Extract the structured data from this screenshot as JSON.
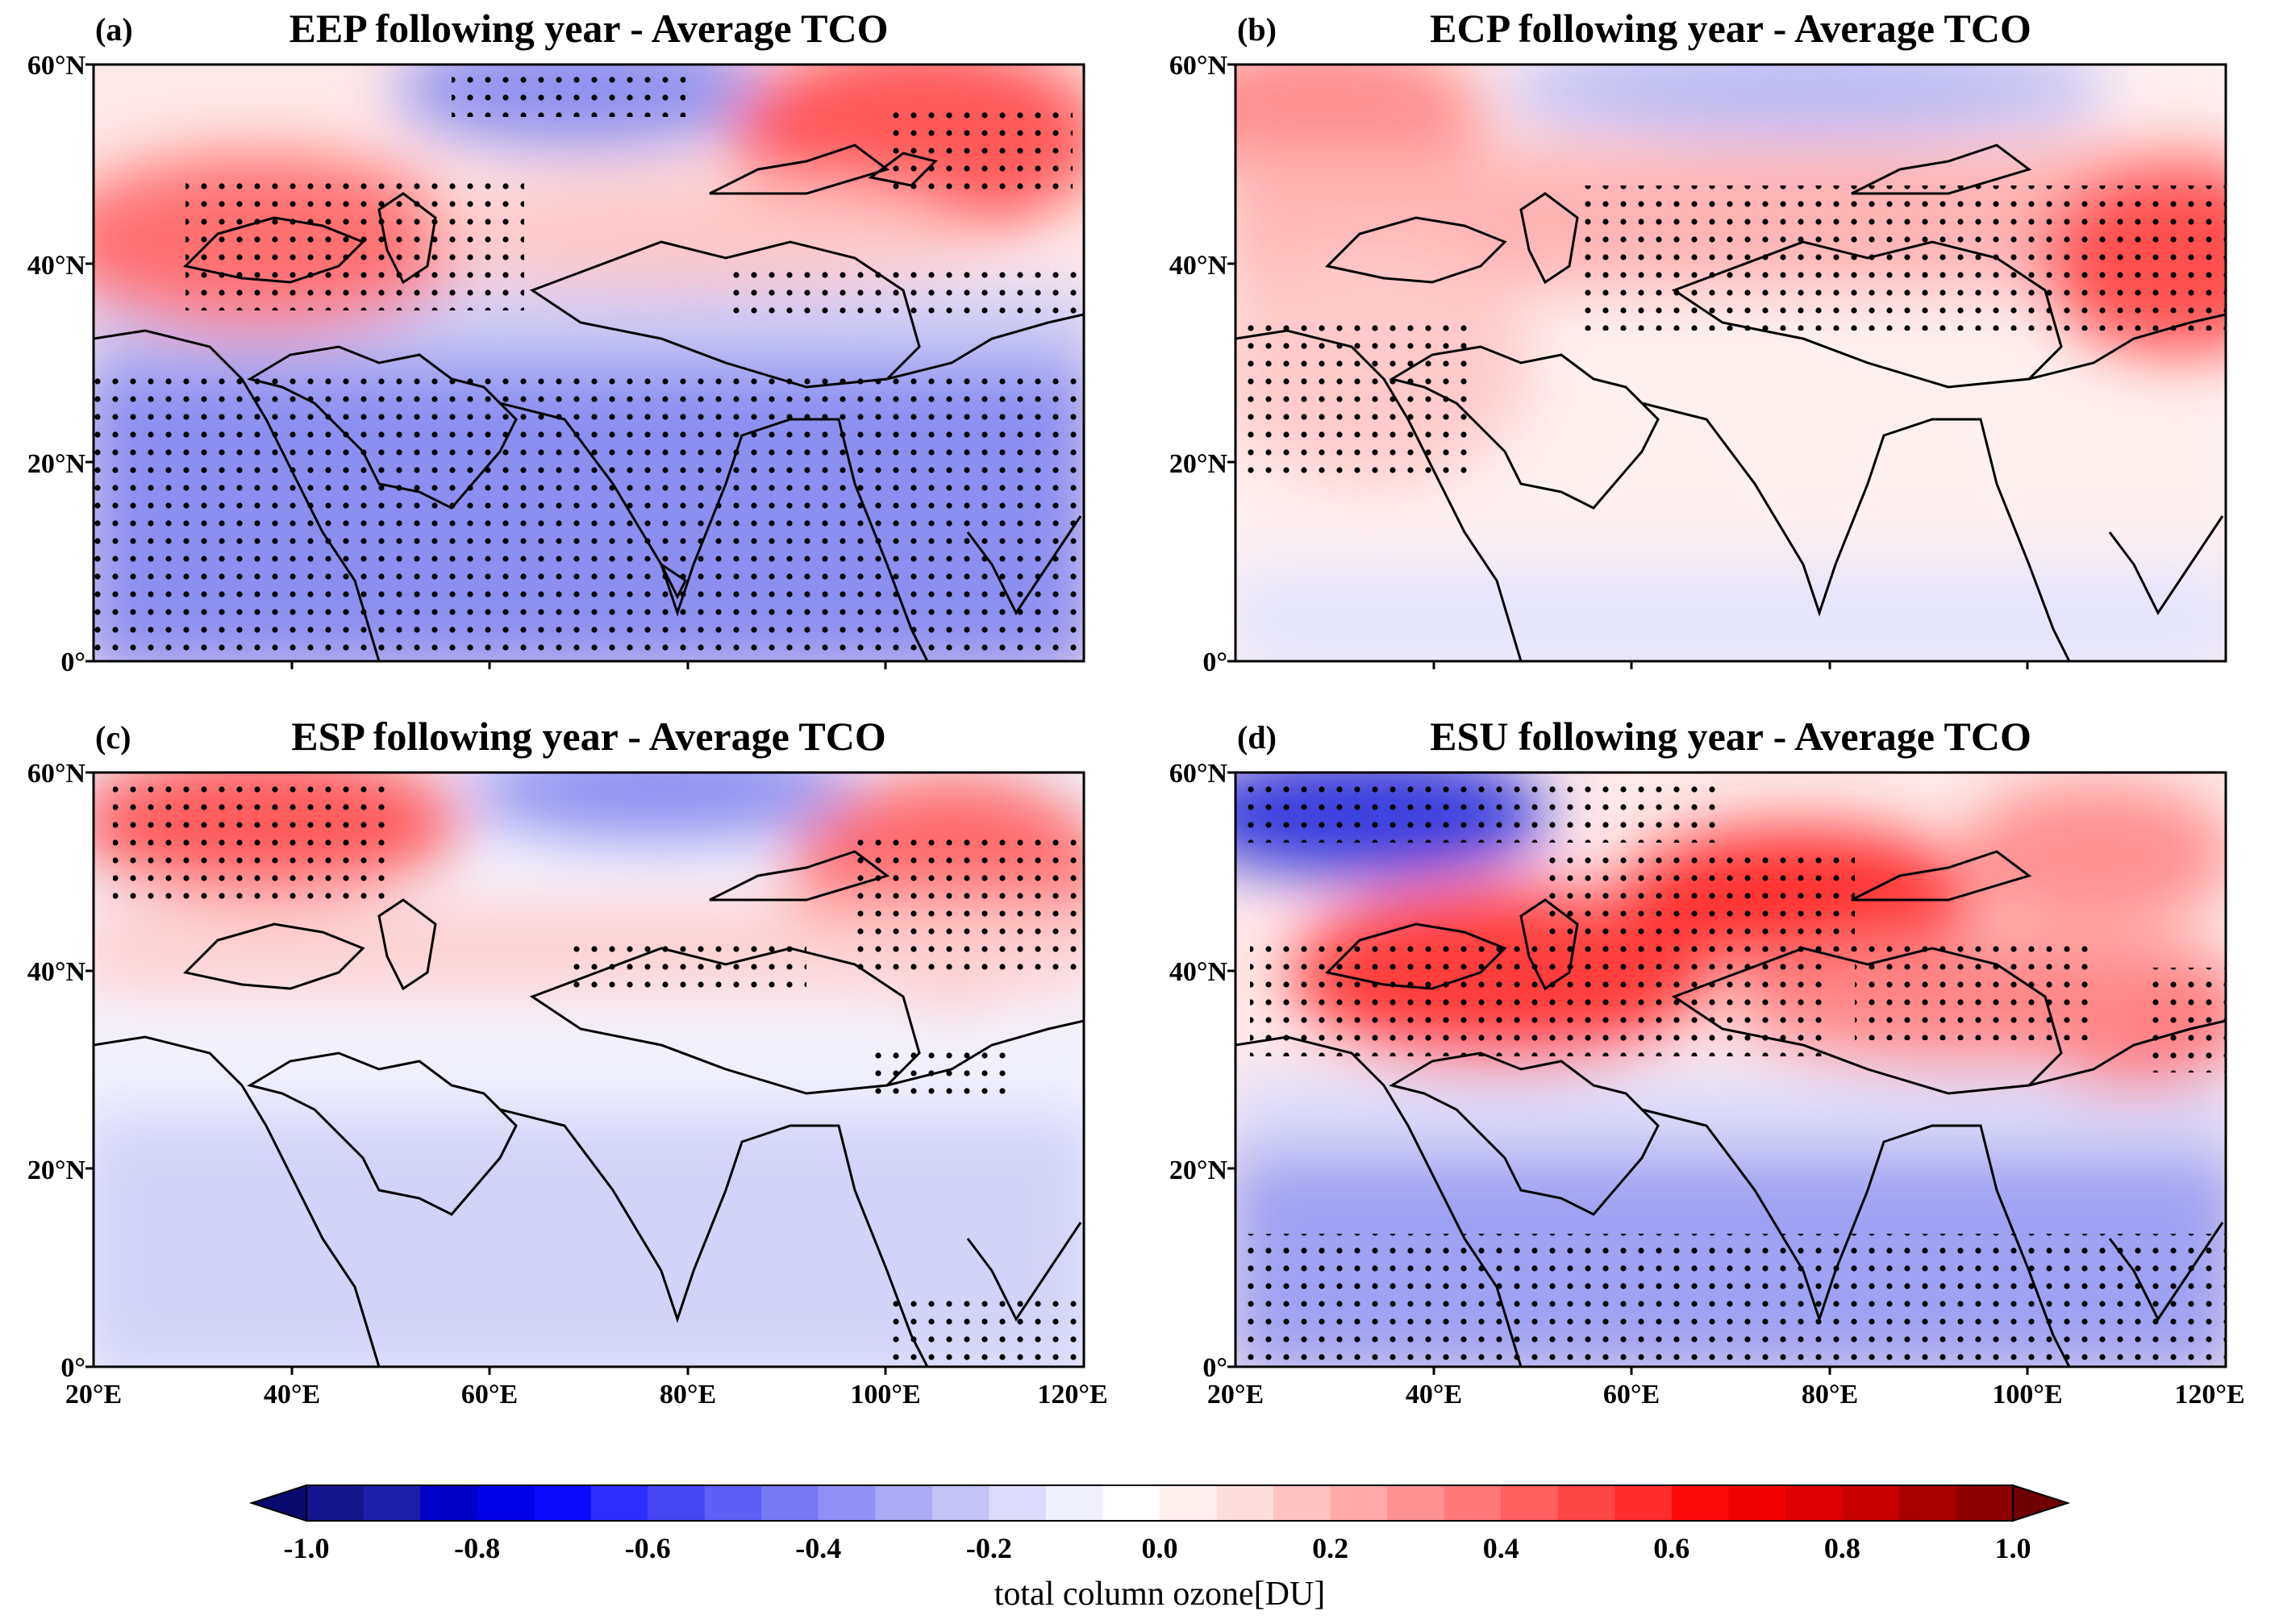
{
  "panels": [
    {
      "label": "(a)",
      "title": "EEP following year - Average TCO",
      "show_x_labels": false
    },
    {
      "label": "(b)",
      "title": "ECP following year - Average TCO",
      "show_x_labels": false
    },
    {
      "label": "(c)",
      "title": "ESP following year - Average TCO",
      "show_x_labels": true
    },
    {
      "label": "(d)",
      "title": "ESU following year - Average TCO",
      "show_x_labels": true
    }
  ],
  "axes": {
    "lat_ticks": [
      {
        "value": 60,
        "label": "60°N"
      },
      {
        "value": 40,
        "label": "40°N"
      },
      {
        "value": 20,
        "label": "20°N"
      },
      {
        "value": 0,
        "label": "0°"
      }
    ],
    "lon_ticks": [
      {
        "value": 20,
        "label": "20°E"
      },
      {
        "value": 40,
        "label": "40°E"
      },
      {
        "value": 60,
        "label": "60°E"
      },
      {
        "value": 80,
        "label": "80°E"
      },
      {
        "value": 100,
        "label": "100°E"
      },
      {
        "value": 120,
        "label": "120°E"
      }
    ],
    "lon_range": [
      20,
      120
    ],
    "lat_range": [
      0,
      60
    ]
  },
  "colorbar": {
    "label": "total column ozone[DU]",
    "range": [
      -1.0,
      1.0
    ],
    "ticks": [
      {
        "value": -1.0,
        "label": "-1.0"
      },
      {
        "value": -0.8,
        "label": "-0.8"
      },
      {
        "value": -0.6,
        "label": "-0.6"
      },
      {
        "value": -0.4,
        "label": "-0.4"
      },
      {
        "value": -0.2,
        "label": "-0.2"
      },
      {
        "value": 0.0,
        "label": "0.0"
      },
      {
        "value": 0.2,
        "label": "0.2"
      },
      {
        "value": 0.4,
        "label": "0.4"
      },
      {
        "value": 0.6,
        "label": "0.6"
      },
      {
        "value": 0.8,
        "label": "0.8"
      },
      {
        "value": 1.0,
        "label": "1.0"
      }
    ],
    "colors": [
      "#0a0a6e",
      "#14148c",
      "#1e1eaa",
      "#0000c8",
      "#0000e6",
      "#0a0aff",
      "#2d2dff",
      "#4646f5",
      "#5f5ff5",
      "#7878f5",
      "#9191f5",
      "#aaaaf5",
      "#c3c3f8",
      "#dcdcfa",
      "#f0f0fc",
      "#ffffff",
      "#fff0f0",
      "#ffdcdc",
      "#ffc3c3",
      "#ffaaaa",
      "#ff9191",
      "#ff7878",
      "#ff5f5f",
      "#ff4646",
      "#ff2d2d",
      "#ff0a0a",
      "#f00000",
      "#dc0000",
      "#c80000",
      "#aa0000",
      "#8c0000",
      "#6e0000"
    ]
  }
}
